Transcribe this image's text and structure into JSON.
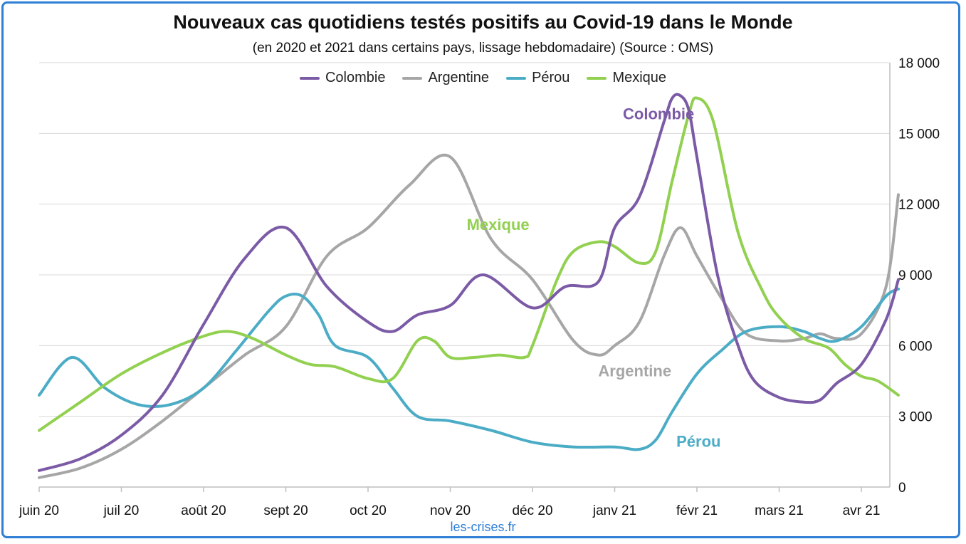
{
  "chart_data": {
    "type": "line",
    "title": "Nouveaux cas quotidiens testés positifs au Covid-19 dans le Monde",
    "subtitle": "(en 2020 et 2021 dans certains pays, lissage hebdomadaire) (Source : OMS)",
    "source": "les-crises.fr",
    "x_tick_labels": [
      "juin 20",
      "juil 20",
      "août 20",
      "sept 20",
      "oct 20",
      "nov 20",
      "déc 20",
      "janv 21",
      "févr 21",
      "mars 21",
      "avr 21"
    ],
    "y_tick_labels": [
      "0",
      "3 000",
      "6 000",
      "9 000",
      "12 000",
      "15 000",
      "18 000"
    ],
    "ylim": [
      0,
      18000
    ],
    "xlim": [
      0,
      10.45
    ],
    "y_axis_side": "right",
    "grid": "horizontal",
    "legend_position": "top",
    "series": [
      {
        "name": "Colombie",
        "color": "#7b5aa6",
        "x": [
          0,
          0.5,
          1,
          1.5,
          2,
          2.5,
          3,
          3.5,
          4,
          4.3,
          4.6,
          5,
          5.4,
          6,
          6.4,
          6.8,
          7,
          7.3,
          7.6,
          7.7,
          7.8,
          7.9,
          8,
          8.25,
          8.5,
          8.7,
          9,
          9.3,
          9.5,
          9.7,
          10,
          10.3,
          10.45
        ],
        "y": [
          700,
          1200,
          2200,
          3900,
          6900,
          9700,
          11000,
          8500,
          7000,
          6600,
          7300,
          7700,
          9000,
          7600,
          8500,
          8700,
          11000,
          12300,
          15500,
          16500,
          16600,
          16000,
          14000,
          9000,
          6000,
          4500,
          3800,
          3600,
          3700,
          4400,
          5200,
          7100,
          8800
        ]
      },
      {
        "name": "Argentine",
        "color": "#a6a6a6",
        "x": [
          0,
          0.5,
          1,
          1.5,
          2,
          2.5,
          3,
          3.5,
          4,
          4.5,
          5,
          5.5,
          6,
          6.5,
          6.8,
          7,
          7.3,
          7.6,
          7.8,
          8,
          8.3,
          8.6,
          9,
          9.3,
          9.5,
          9.7,
          10,
          10.3,
          10.45
        ],
        "y": [
          400,
          800,
          1600,
          2800,
          4200,
          5600,
          6800,
          9800,
          11000,
          12800,
          14000,
          10500,
          8800,
          6200,
          5600,
          6000,
          7000,
          9800,
          11000,
          9800,
          8000,
          6500,
          6200,
          6300,
          6500,
          6300,
          6500,
          8500,
          12400
        ]
      },
      {
        "name": "Pérou",
        "color": "#4bacc6",
        "x": [
          0,
          0.4,
          0.8,
          1.2,
          1.6,
          2,
          2.4,
          2.8,
          3,
          3.2,
          3.4,
          3.6,
          4,
          4.3,
          4.6,
          5,
          5.5,
          6,
          6.5,
          7,
          7.3,
          7.5,
          7.7,
          8,
          8.3,
          8.6,
          9,
          9.3,
          9.5,
          9.7,
          10,
          10.3,
          10.45
        ],
        "y": [
          3900,
          5500,
          4200,
          3500,
          3500,
          4200,
          5800,
          7500,
          8100,
          8100,
          7300,
          6000,
          5500,
          4200,
          3000,
          2800,
          2400,
          1900,
          1700,
          1700,
          1600,
          2000,
          3200,
          4800,
          5800,
          6600,
          6800,
          6600,
          6300,
          6200,
          6800,
          8100,
          8400
        ]
      },
      {
        "name": "Mexique",
        "color": "#92d050",
        "x": [
          0,
          0.5,
          1,
          1.5,
          2,
          2.3,
          2.6,
          3,
          3.3,
          3.6,
          4,
          4.3,
          4.6,
          4.8,
          5,
          5.3,
          5.6,
          5.9,
          6,
          6.3,
          6.5,
          6.8,
          7,
          7.3,
          7.5,
          7.7,
          7.9,
          8,
          8.2,
          8.5,
          8.8,
          9,
          9.3,
          9.6,
          9.8,
          10,
          10.2,
          10.45
        ],
        "y": [
          2400,
          3600,
          4800,
          5700,
          6400,
          6600,
          6300,
          5600,
          5200,
          5100,
          4600,
          4600,
          6200,
          6200,
          5500,
          5500,
          5600,
          5500,
          6000,
          8800,
          10000,
          10400,
          10200,
          9500,
          10000,
          13000,
          15800,
          16500,
          15500,
          10800,
          8300,
          7200,
          6300,
          5900,
          5200,
          4700,
          4500,
          3900
        ]
      }
    ],
    "annotations": [
      {
        "text": "Colombie",
        "series": "Colombie",
        "x": 7.1,
        "y": 15600
      },
      {
        "text": "Mexique",
        "series": "Mexique",
        "x": 5.2,
        "y": 10900
      },
      {
        "text": "Argentine",
        "series": "Argentine",
        "x": 6.8,
        "y": 4700
      },
      {
        "text": "Pérou",
        "series": "Pérou",
        "x": 7.75,
        "y": 1700
      }
    ]
  }
}
